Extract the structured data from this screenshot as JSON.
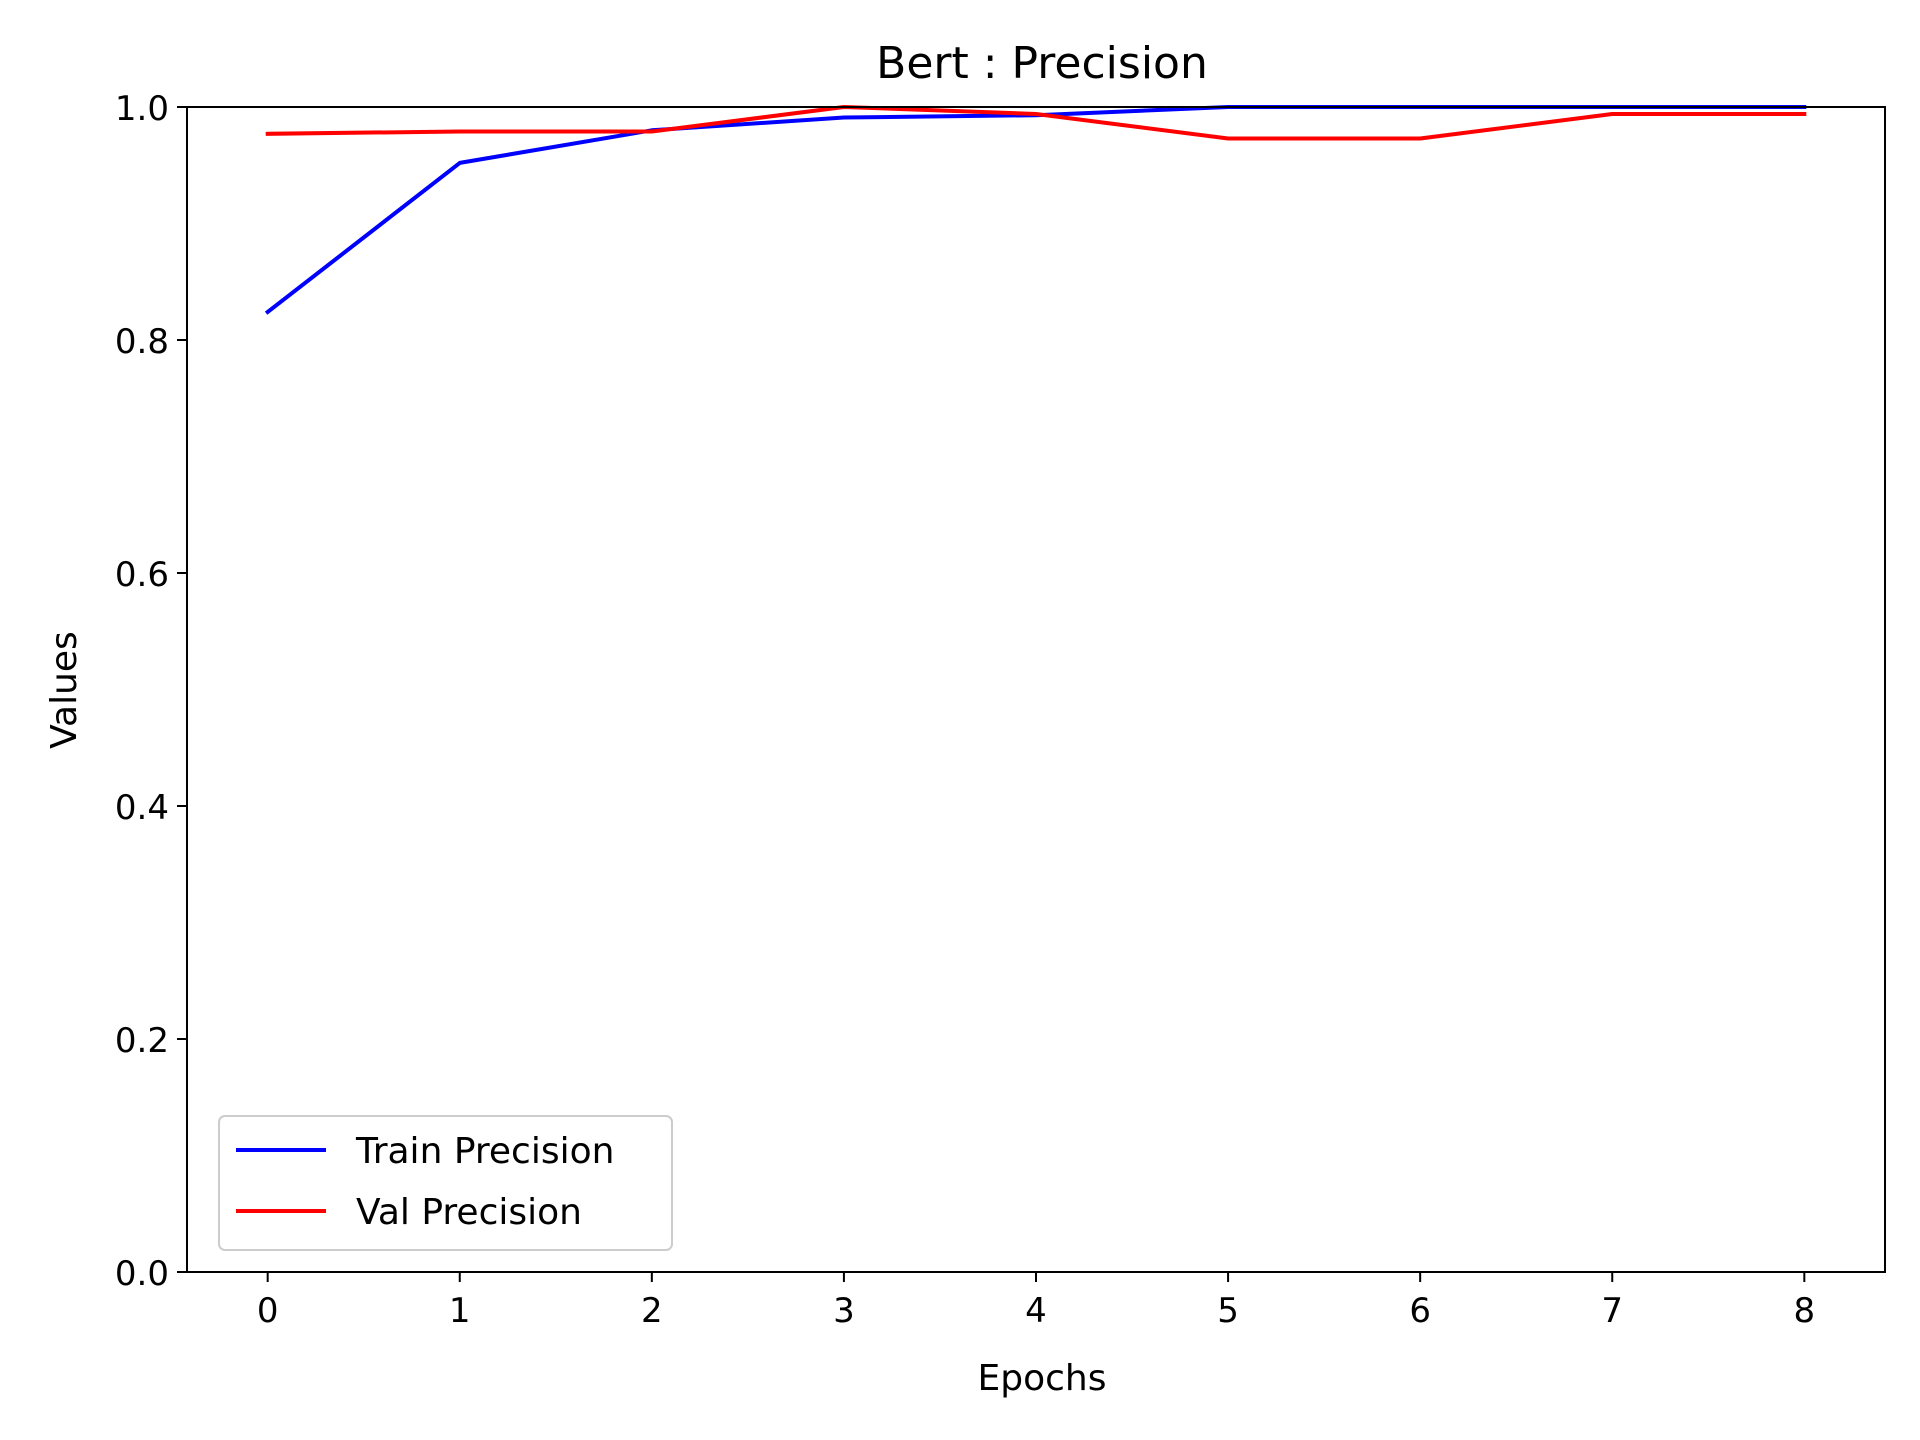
{
  "chart_data": {
    "type": "line",
    "title": "Bert : Precision",
    "xlabel": "Epochs",
    "ylabel": "Values",
    "x": [
      0,
      1,
      2,
      3,
      4,
      5,
      6,
      7,
      8
    ],
    "xlim": [
      -0.42,
      8.42
    ],
    "ylim": [
      0.0,
      1.0
    ],
    "xticks": [
      0,
      1,
      2,
      3,
      4,
      5,
      6,
      7,
      8
    ],
    "xtick_labels": [
      "0",
      "1",
      "2",
      "3",
      "4",
      "5",
      "6",
      "7",
      "8"
    ],
    "yticks": [
      0.0,
      0.2,
      0.4,
      0.6,
      0.8,
      1.0
    ],
    "ytick_labels": [
      "0.0",
      "0.2",
      "0.4",
      "0.6",
      "0.8",
      "1.0"
    ],
    "grid": false,
    "legend_position": "lower-left",
    "series": [
      {
        "name": "Train Precision",
        "color": "#0000ff",
        "values": [
          0.824,
          0.952,
          0.98,
          0.991,
          0.993,
          1.0,
          1.0,
          1.0,
          1.0
        ]
      },
      {
        "name": "Val Precision",
        "color": "#ff0000",
        "values": [
          0.977,
          0.979,
          0.979,
          1.0,
          0.994,
          0.973,
          0.973,
          0.994,
          0.994
        ]
      }
    ]
  }
}
